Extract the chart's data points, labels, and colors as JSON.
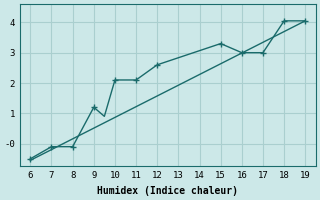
{
  "xlabel": "Humidex (Indice chaleur)",
  "background_color": "#cce8e8",
  "grid_color": "#aacfcf",
  "line_color": "#1a6b6b",
  "xlim": [
    5.5,
    19.5
  ],
  "ylim": [
    -0.75,
    4.6
  ],
  "xticks": [
    6,
    7,
    8,
    9,
    10,
    11,
    12,
    13,
    14,
    15,
    16,
    17,
    18,
    19
  ],
  "yticks": [
    0,
    1,
    2,
    3,
    4
  ],
  "ytick_labels": [
    "-0",
    "1",
    "2",
    "3",
    "4"
  ],
  "line1_x": [
    6,
    7,
    8,
    9,
    9.5,
    10,
    11,
    12,
    15,
    16,
    16.5,
    17,
    18,
    19
  ],
  "line1_y": [
    -0.5,
    -0.1,
    -0.1,
    1.2,
    0.9,
    2.1,
    2.1,
    2.6,
    3.3,
    3.0,
    3.0,
    3.0,
    4.05,
    4.05
  ],
  "line2_x": [
    6,
    19
  ],
  "line2_y": [
    -0.55,
    4.05
  ],
  "marker_x1": [
    6,
    7,
    8,
    9,
    10,
    11,
    12,
    15,
    16,
    17,
    18,
    19
  ],
  "marker_y1": [
    -0.5,
    -0.1,
    -0.1,
    1.2,
    2.1,
    2.1,
    2.6,
    3.3,
    3.0,
    3.0,
    4.05,
    4.05
  ],
  "xlabel_fontsize": 7,
  "tick_fontsize": 6.5
}
